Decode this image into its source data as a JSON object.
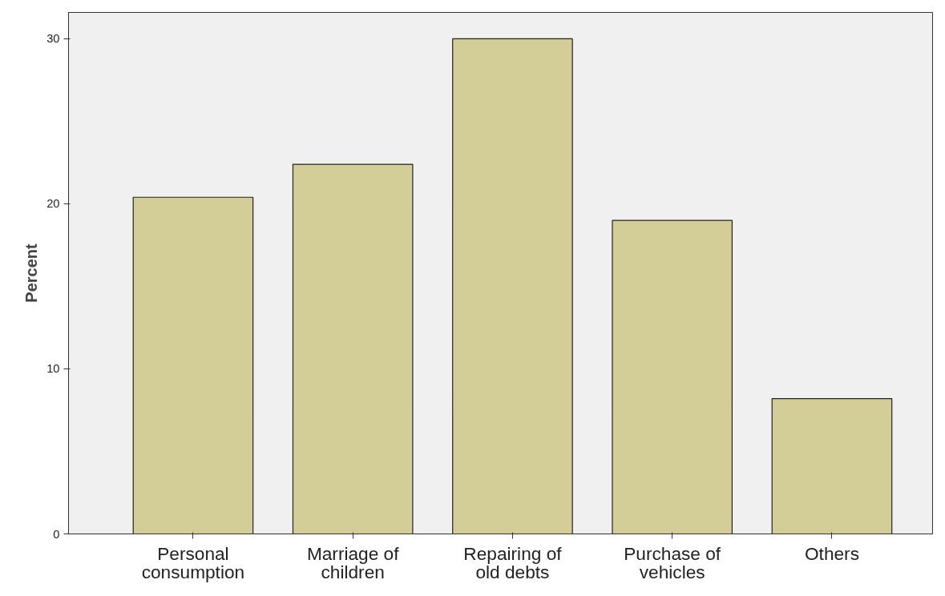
{
  "chart_data": {
    "type": "bar",
    "ylabel": "Percent",
    "categories": [
      "Personal consumption",
      "Marriage of children",
      "Repairing of old debts",
      "Purchase of vehicles",
      "Others"
    ],
    "values": [
      20.4,
      22.4,
      30.0,
      19.0,
      8.2
    ],
    "color": "#d3ce97",
    "ylim": [
      0,
      31.6
    ],
    "yticks": [
      0,
      10,
      20,
      30
    ],
    "grid": false
  }
}
